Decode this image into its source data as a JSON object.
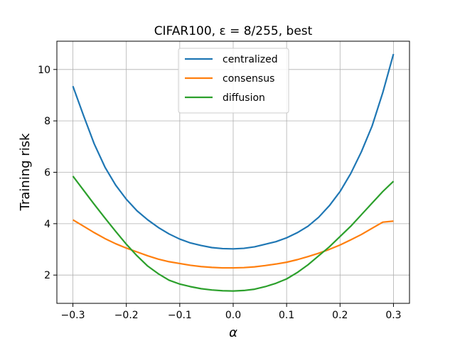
{
  "chart_data": {
    "type": "line",
    "title": "CIFAR100, ε = 8/255, best",
    "xlabel": "α",
    "ylabel": "Training risk",
    "xlim": [
      -0.33,
      0.33
    ],
    "ylim": [
      0.9,
      11.1
    ],
    "xticks": [
      -0.3,
      -0.2,
      -0.1,
      0.0,
      0.1,
      0.2,
      0.3
    ],
    "xtick_labels": [
      "−0.3",
      "−0.2",
      "−0.1",
      "0.0",
      "0.1",
      "0.2",
      "0.3"
    ],
    "yticks": [
      2,
      4,
      6,
      8,
      10
    ],
    "ytick_labels": [
      "2",
      "4",
      "6",
      "8",
      "10"
    ],
    "grid": true,
    "legend_position": "top-center",
    "x": [
      -0.3,
      -0.28,
      -0.26,
      -0.24,
      -0.22,
      -0.2,
      -0.18,
      -0.16,
      -0.14,
      -0.12,
      -0.1,
      -0.08,
      -0.06,
      -0.04,
      -0.02,
      0.0,
      0.02,
      0.04,
      0.06,
      0.08,
      0.1,
      0.12,
      0.14,
      0.16,
      0.18,
      0.2,
      0.22,
      0.24,
      0.26,
      0.28,
      0.3
    ],
    "series": [
      {
        "name": "centralized",
        "color": "#1f77b4",
        "values": [
          9.35,
          8.2,
          7.1,
          6.2,
          5.5,
          4.95,
          4.5,
          4.15,
          3.85,
          3.6,
          3.4,
          3.25,
          3.15,
          3.07,
          3.03,
          3.02,
          3.04,
          3.1,
          3.2,
          3.3,
          3.45,
          3.65,
          3.9,
          4.25,
          4.7,
          5.25,
          5.95,
          6.8,
          7.8,
          9.1,
          10.6
        ]
      },
      {
        "name": "consensus",
        "color": "#ff7f0e",
        "values": [
          4.15,
          3.9,
          3.65,
          3.42,
          3.22,
          3.05,
          2.9,
          2.75,
          2.62,
          2.52,
          2.45,
          2.38,
          2.33,
          2.3,
          2.28,
          2.28,
          2.29,
          2.32,
          2.37,
          2.43,
          2.5,
          2.6,
          2.72,
          2.85,
          3.0,
          3.17,
          3.37,
          3.58,
          3.82,
          4.06,
          4.1
        ]
      },
      {
        "name": "diffusion",
        "color": "#2ca02c",
        "values": [
          5.85,
          5.3,
          4.75,
          4.22,
          3.7,
          3.2,
          2.75,
          2.35,
          2.05,
          1.8,
          1.65,
          1.55,
          1.47,
          1.42,
          1.39,
          1.38,
          1.4,
          1.45,
          1.55,
          1.68,
          1.85,
          2.1,
          2.4,
          2.75,
          3.1,
          3.5,
          3.9,
          4.35,
          4.8,
          5.25,
          5.65
        ]
      }
    ]
  }
}
